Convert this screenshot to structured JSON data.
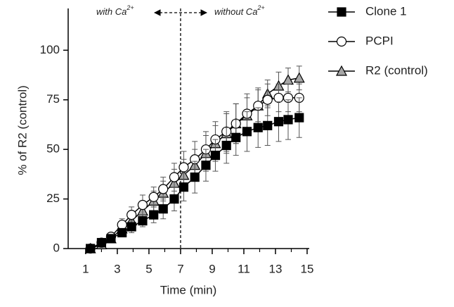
{
  "chart_data": {
    "type": "line",
    "xlabel": "Time (min)",
    "ylabel": "% of R2 (control)",
    "x": [
      1.3,
      2.0,
      2.6,
      3.3,
      3.9,
      4.6,
      5.3,
      5.9,
      6.6,
      7.2,
      7.9,
      8.6,
      9.2,
      9.9,
      10.5,
      11.2,
      11.9,
      12.5,
      13.2,
      13.8,
      14.5
    ],
    "series": [
      {
        "name": "R2 (control)",
        "color": "#a6a6a6",
        "marker": "triangle",
        "values": [
          0,
          2,
          5,
          10,
          14,
          19,
          24,
          28,
          33,
          37,
          42,
          48,
          53,
          58,
          63,
          67,
          72,
          78,
          82,
          85,
          86
        ],
        "errors": [
          0,
          1,
          2,
          3,
          3,
          4,
          5,
          6,
          7,
          8,
          8,
          9,
          9,
          10,
          10,
          9,
          8,
          7,
          7,
          6,
          6
        ]
      },
      {
        "name": "PCPI",
        "color": "#ffffff",
        "marker": "circle",
        "values": [
          0,
          3,
          6,
          12,
          17,
          22,
          26,
          30,
          36,
          41,
          45,
          50,
          55,
          59,
          63,
          68,
          72,
          75,
          76,
          76,
          76
        ],
        "errors": [
          0,
          1,
          2,
          3,
          4,
          5,
          5,
          6,
          7,
          8,
          9,
          9,
          9,
          10,
          10,
          10,
          9,
          8,
          7,
          7,
          7
        ]
      },
      {
        "name": "Clone 1",
        "color": "#000000",
        "marker": "square",
        "values": [
          0,
          3,
          5,
          8,
          11,
          14,
          17,
          20,
          25,
          31,
          36,
          42,
          47,
          52,
          56,
          59,
          61,
          62,
          64,
          65,
          66
        ],
        "errors": [
          0,
          1,
          1,
          2,
          3,
          3,
          4,
          5,
          6,
          7,
          8,
          8,
          8,
          9,
          9,
          10,
          10,
          10,
          10,
          10,
          10
        ]
      }
    ],
    "legend_order": [
      2,
      1,
      0
    ],
    "xlim": [
      0,
      15
    ],
    "xticks": [
      1,
      3,
      5,
      7,
      9,
      11,
      13,
      15
    ],
    "xminorticks": [
      2,
      4,
      6,
      8,
      10,
      12,
      14
    ],
    "ylim": [
      0,
      120
    ],
    "yticks": [
      0,
      25,
      50,
      75,
      100
    ],
    "vline_x": 7,
    "annotations": [
      {
        "text": "with Ca",
        "superscript": "2+"
      },
      {
        "text": "without Ca",
        "superscript": "2+"
      }
    ]
  }
}
